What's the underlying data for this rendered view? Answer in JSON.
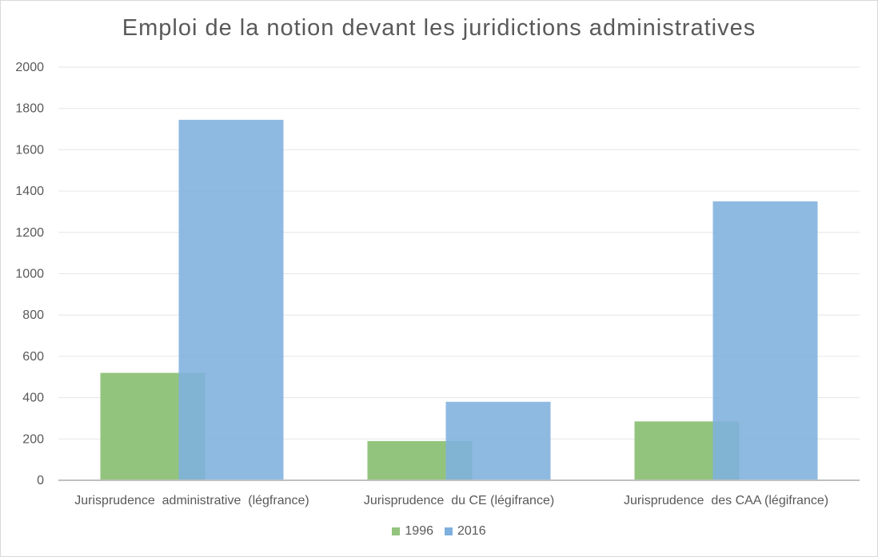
{
  "chart_data": {
    "type": "bar",
    "title": "Emploi de la notion devant les juridictions administratives",
    "categories": [
      "Jurisprudence  administrative  (légfrance)",
      "Jurisprudence  du CE (légifrance)",
      "Jurisprudence  des CAA (légifrance)"
    ],
    "series": [
      {
        "name": "1996",
        "values": [
          520,
          190,
          285
        ],
        "color": "#93c47d"
      },
      {
        "name": "2016",
        "values": [
          1745,
          380,
          1350
        ],
        "color": "#7eb0de"
      }
    ],
    "ylim": [
      0,
      2000
    ],
    "yticks": [
      "0",
      "200",
      "400",
      "600",
      "800",
      "1000",
      "1200",
      "1400",
      "1600",
      "1800",
      "2000"
    ],
    "grid": true,
    "legend_position": "bottom"
  }
}
